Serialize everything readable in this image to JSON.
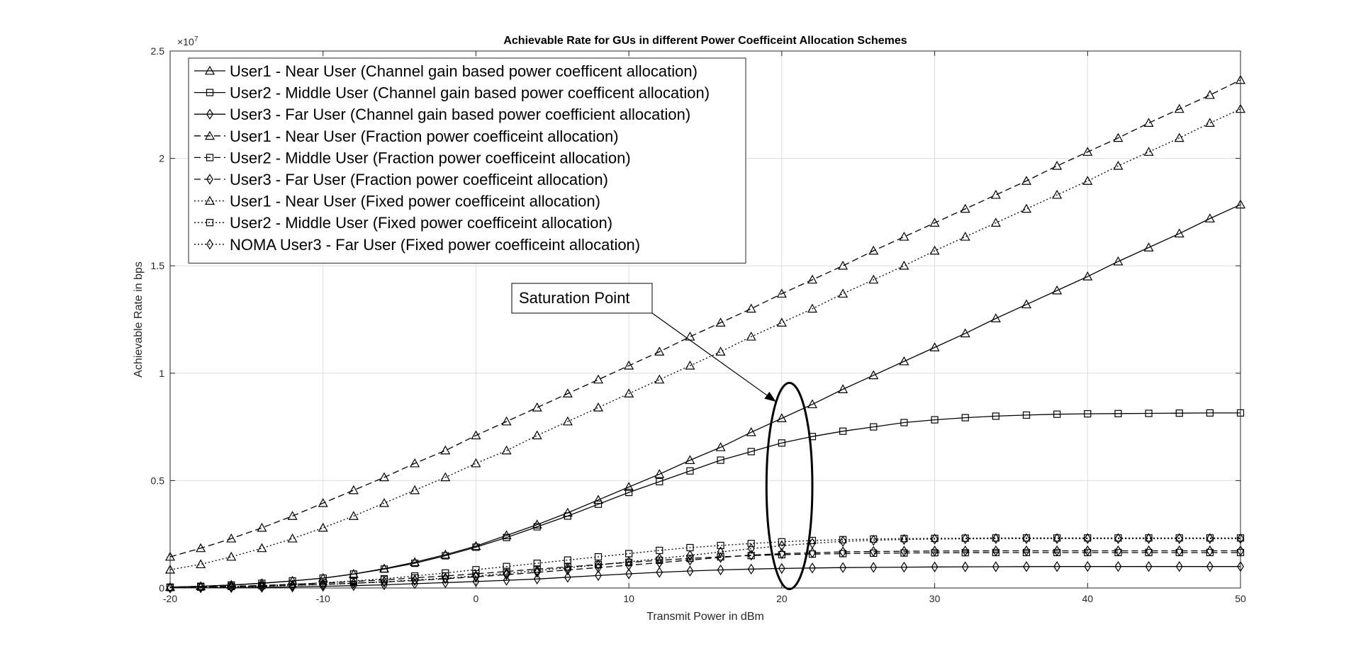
{
  "chart_data": {
    "type": "line",
    "title": "Achievable Rate for GUs in different Power Coefficeint Allocation Schemes",
    "xlabel": "Transmit Power in dBm",
    "ylabel": "Achievable Rate in bps",
    "y_exponent_label": "×10",
    "y_exponent": "7",
    "xlim": [
      -20,
      50
    ],
    "ylim": [
      0,
      25000000
    ],
    "xticks": [
      -20,
      -10,
      0,
      10,
      20,
      30,
      40,
      50
    ],
    "xtick_labels": [
      "-20",
      "-10",
      "0",
      "10",
      "20",
      "30",
      "40",
      "50"
    ],
    "yticks": [
      0,
      5000000,
      10000000,
      15000000,
      20000000,
      25000000
    ],
    "ytick_labels": [
      "0",
      "0.5",
      "1",
      "1.5",
      "2",
      "2.5"
    ],
    "grid": true,
    "legend_position": "top-left",
    "x": [
      -20,
      -18,
      -16,
      -14,
      -12,
      -10,
      -8,
      -6,
      -4,
      -2,
      0,
      2,
      4,
      6,
      8,
      10,
      12,
      14,
      16,
      18,
      20,
      22,
      24,
      26,
      28,
      30,
      32,
      34,
      36,
      38,
      40,
      42,
      44,
      46,
      48,
      50
    ],
    "series": [
      {
        "name": "User1 - Near User (Channel gain based power coefficent allocation)",
        "line_style": "solid",
        "marker": "triangle",
        "color": "#000000",
        "values": [
          40000,
          80000,
          140000,
          220000,
          330000,
          460000,
          650000,
          900000,
          1200000,
          1550000,
          1950000,
          2450000,
          2950000,
          3500000,
          4100000,
          4700000,
          5300000,
          5950000,
          6550000,
          7250000,
          7900000,
          8550000,
          9250000,
          9900000,
          10550000,
          11200000,
          11850000,
          12550000,
          13200000,
          13850000,
          14500000,
          15200000,
          15850000,
          16500000,
          17200000,
          17850000
        ]
      },
      {
        "name": "User2 - Middle User (Channel gain based power coefficent allocation)",
        "line_style": "solid",
        "marker": "square",
        "color": "#000000",
        "values": [
          40000,
          80000,
          140000,
          220000,
          330000,
          460000,
          650000,
          880000,
          1150000,
          1500000,
          1900000,
          2350000,
          2850000,
          3350000,
          3900000,
          4450000,
          4950000,
          5450000,
          5950000,
          6350000,
          6750000,
          7050000,
          7300000,
          7500000,
          7700000,
          7830000,
          7930000,
          8000000,
          8050000,
          8090000,
          8110000,
          8120000,
          8130000,
          8140000,
          8150000,
          8150000
        ]
      },
      {
        "name": "User3 - Far User (Channel gain based power coefficient allocation)",
        "line_style": "solid",
        "marker": "diamond",
        "color": "#000000",
        "values": [
          5000,
          10000,
          20000,
          30000,
          50000,
          80000,
          110000,
          150000,
          200000,
          250000,
          300000,
          360000,
          420000,
          500000,
          580000,
          660000,
          730000,
          790000,
          840000,
          880000,
          910000,
          930000,
          950000,
          960000,
          970000,
          980000,
          985000,
          990000,
          995000,
          998000,
          1000000,
          1000000,
          1000000,
          1000000,
          1000000,
          1000000
        ]
      },
      {
        "name": "User1 - Near User (Fraction power coefficeint allocation)",
        "line_style": "dashed",
        "marker": "triangle",
        "color": "#000000",
        "values": [
          1450000,
          1850000,
          2300000,
          2800000,
          3350000,
          3950000,
          4550000,
          5150000,
          5800000,
          6400000,
          7100000,
          7750000,
          8400000,
          9050000,
          9700000,
          10350000,
          11000000,
          11700000,
          12350000,
          13000000,
          13700000,
          14350000,
          15000000,
          15700000,
          16350000,
          17000000,
          17650000,
          18300000,
          18950000,
          19650000,
          20300000,
          20950000,
          21650000,
          22300000,
          22950000,
          23650000
        ]
      },
      {
        "name": "User2 - Middle User (Fraction power coefficeint allocation)",
        "line_style": "dashed",
        "marker": "square",
        "color": "#000000",
        "values": [
          30000,
          50000,
          80000,
          120000,
          170000,
          230000,
          300000,
          380000,
          470000,
          560000,
          660000,
          770000,
          880000,
          980000,
          1090000,
          1190000,
          1290000,
          1380000,
          1450000,
          1510000,
          1550000,
          1580000,
          1600000,
          1620000,
          1630000,
          1640000,
          1645000,
          1650000,
          1650000,
          1650000,
          1650000,
          1650000,
          1650000,
          1650000,
          1650000,
          1650000
        ]
      },
      {
        "name": "User3 - Far User (Fraction power coefficeint allocation)",
        "line_style": "dashed",
        "marker": "diamond",
        "color": "#000000",
        "values": [
          20000,
          40000,
          60000,
          90000,
          130000,
          170000,
          220000,
          280000,
          350000,
          430000,
          520000,
          620000,
          730000,
          840000,
          950000,
          1060000,
          1180000,
          1300000,
          1420000,
          1530000,
          1600000,
          1640000,
          1680000,
          1700000,
          1710000,
          1720000,
          1725000,
          1730000,
          1730000,
          1730000,
          1730000,
          1730000,
          1730000,
          1730000,
          1730000,
          1730000
        ]
      },
      {
        "name": "User1 - Near User (Fixed power coefficeint allocation)",
        "line_style": "dotted",
        "marker": "triangle",
        "color": "#000000",
        "values": [
          850000,
          1100000,
          1450000,
          1850000,
          2300000,
          2800000,
          3350000,
          3950000,
          4550000,
          5150000,
          5800000,
          6400000,
          7100000,
          7750000,
          8400000,
          9050000,
          9700000,
          10350000,
          11000000,
          11700000,
          12350000,
          13000000,
          13700000,
          14350000,
          15000000,
          15700000,
          16350000,
          17000000,
          17650000,
          18300000,
          18950000,
          19650000,
          20300000,
          20950000,
          21650000,
          22300000
        ]
      },
      {
        "name": "User2 - Middle User (Fixed power coefficeint allocation)",
        "line_style": "dotted",
        "marker": "square",
        "color": "#000000",
        "values": [
          20000,
          40000,
          70000,
          110000,
          170000,
          240000,
          330000,
          430000,
          560000,
          700000,
          850000,
          1000000,
          1150000,
          1300000,
          1450000,
          1600000,
          1750000,
          1880000,
          1980000,
          2070000,
          2150000,
          2210000,
          2250000,
          2280000,
          2300000,
          2310000,
          2320000,
          2330000,
          2330000,
          2330000,
          2330000,
          2330000,
          2330000,
          2330000,
          2330000,
          2330000
        ]
      },
      {
        "name": "NOMA User3 - Far User (Fixed power coefficeint allocation)",
        "line_style": "dotted",
        "marker": "diamond",
        "color": "#000000",
        "values": [
          15000,
          30000,
          50000,
          80000,
          120000,
          160000,
          220000,
          290000,
          370000,
          460000,
          560000,
          680000,
          810000,
          940000,
          1080000,
          1220000,
          1370000,
          1520000,
          1680000,
          1830000,
          1970000,
          2080000,
          2170000,
          2220000,
          2260000,
          2280000,
          2290000,
          2300000,
          2300000,
          2300000,
          2300000,
          2300000,
          2300000,
          2300000,
          2300000,
          2300000
        ]
      }
    ],
    "annotations": [
      {
        "text": "Saturation Point",
        "type": "textbox-arrow",
        "arrow_to": {
          "x": 20,
          "y": 8800000
        }
      },
      {
        "type": "ellipse",
        "center": {
          "x": 20.5,
          "y": 4750000
        },
        "half_width": 1.5,
        "half_height": 4800000
      }
    ]
  }
}
